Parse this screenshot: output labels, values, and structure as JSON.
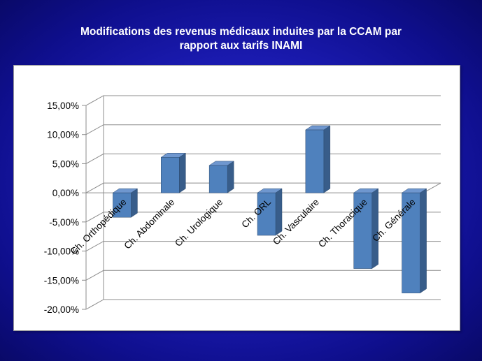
{
  "slide": {
    "title_line1": "Modifications des revenus médicaux induites par la CCAM par",
    "title_line2": "rapport aux tarifs INAMI"
  },
  "colors": {
    "background": "#1d1db8",
    "bar_front": "#4f81bd",
    "bar_side": "#385d8a",
    "bar_top": "#6f97cf",
    "grid": "#8c8c8c"
  },
  "chart_data": {
    "type": "bar",
    "title": "",
    "xlabel": "",
    "ylabel": "",
    "three_d": true,
    "grid": true,
    "ylim": [
      -20,
      15
    ],
    "ytick_step": 5,
    "ytick_labels": [
      "15,00%",
      "10,00%",
      "5,00%",
      "0,00%",
      "-5,00%",
      "-10,00%",
      "-15,00%",
      "-20,00%"
    ],
    "categories": [
      "Ch. Orthopédique",
      "Ch. Abdominale",
      "Ch. Urologique",
      "Ch. ORL",
      "Ch. Vasculaire",
      "Ch. Thoracique",
      "Ch. Générale"
    ],
    "values": [
      -4.2,
      6.1,
      4.7,
      -7.3,
      10.8,
      -13.0,
      -17.2
    ]
  }
}
